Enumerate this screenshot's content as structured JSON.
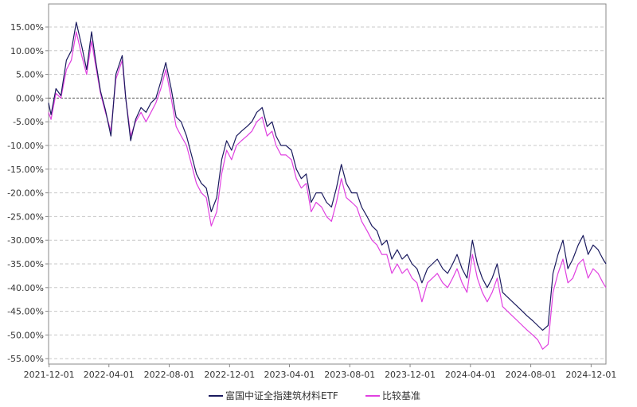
{
  "chart_data": {
    "type": "line",
    "title": "",
    "xlabel": "",
    "ylabel": "",
    "ylim": [
      -0.57,
      0.2
    ],
    "y_ticks": [
      "15.00%",
      "10.00%",
      "5.00%",
      "0.00%",
      "-5.00%",
      "-10.00%",
      "-15.00%",
      "-20.00%",
      "-25.00%",
      "-30.00%",
      "-35.00%",
      "-40.00%",
      "-45.00%",
      "-50.00%",
      "-55.00%"
    ],
    "y_tick_values": [
      0.15,
      0.1,
      0.05,
      0.0,
      -0.05,
      -0.1,
      -0.15,
      -0.2,
      -0.25,
      -0.3,
      -0.35,
      -0.4,
      -0.45,
      -0.5,
      -0.55
    ],
    "x_ticks": [
      "2021-12-01",
      "2022-04-01",
      "2022-08-01",
      "2022-12-01",
      "2023-04-01",
      "2023-08-01",
      "2023-12-01",
      "2024-04-01",
      "2024-08-01",
      "2024-12-01"
    ],
    "x_range": [
      "2021-11-30",
      "2024-12-31"
    ],
    "grid": "horizontal dashed",
    "zero_line": "dashed",
    "legend_position": "bottom",
    "series": [
      {
        "name": "富国中证全指建筑材料ETF",
        "color": "#1a1a5e",
        "dates": [
          "2021-11-30",
          "2021-12-05",
          "2021-12-15",
          "2021-12-25",
          "2022-01-05",
          "2022-01-15",
          "2022-01-25",
          "2022-02-05",
          "2022-02-15",
          "2022-02-25",
          "2022-03-05",
          "2022-03-15",
          "2022-03-25",
          "2022-04-05",
          "2022-04-15",
          "2022-04-28",
          "2022-05-05",
          "2022-05-15",
          "2022-05-25",
          "2022-06-05",
          "2022-06-15",
          "2022-06-25",
          "2022-07-05",
          "2022-07-15",
          "2022-07-25",
          "2022-08-05",
          "2022-08-15",
          "2022-08-25",
          "2022-09-05",
          "2022-09-15",
          "2022-09-25",
          "2022-10-05",
          "2022-10-15",
          "2022-10-25",
          "2022-11-05",
          "2022-11-15",
          "2022-11-25",
          "2022-12-05",
          "2022-12-15",
          "2022-12-25",
          "2023-01-05",
          "2023-01-15",
          "2023-01-25",
          "2023-02-05",
          "2023-02-15",
          "2023-02-25",
          "2023-03-05",
          "2023-03-15",
          "2023-03-25",
          "2023-04-05",
          "2023-04-15",
          "2023-04-25",
          "2023-05-05",
          "2023-05-15",
          "2023-05-25",
          "2023-06-05",
          "2023-06-15",
          "2023-06-25",
          "2023-07-05",
          "2023-07-15",
          "2023-07-25",
          "2023-08-05",
          "2023-08-15",
          "2023-08-25",
          "2023-09-05",
          "2023-09-15",
          "2023-09-25",
          "2023-10-05",
          "2023-10-15",
          "2023-10-25",
          "2023-11-05",
          "2023-11-15",
          "2023-11-25",
          "2023-12-05",
          "2023-12-15",
          "2023-12-25",
          "2024-01-05",
          "2024-01-15",
          "2024-01-25",
          "2024-02-05",
          "2024-02-15",
          "2024-02-25",
          "2024-03-05",
          "2024-03-15",
          "2024-03-25",
          "2024-04-05",
          "2024-04-15",
          "2024-04-25",
          "2024-05-05",
          "2024-05-15",
          "2024-05-25",
          "2024-06-05",
          "2024-06-15",
          "2024-06-25",
          "2024-07-05",
          "2024-07-15",
          "2024-07-25",
          "2024-08-05",
          "2024-08-15",
          "2024-08-25",
          "2024-09-05",
          "2024-09-15",
          "2024-09-25",
          "2024-10-05",
          "2024-10-15",
          "2024-10-25",
          "2024-11-05",
          "2024-11-15",
          "2024-11-25",
          "2024-12-05",
          "2024-12-15",
          "2024-12-25",
          "2024-12-31"
        ],
        "values": [
          -0.01,
          -0.035,
          0.02,
          0.005,
          0.08,
          0.1,
          0.16,
          0.11,
          0.06,
          0.14,
          0.08,
          0.015,
          -0.025,
          -0.08,
          0.05,
          0.09,
          0.0,
          -0.09,
          -0.045,
          -0.02,
          -0.03,
          -0.01,
          0.0,
          0.035,
          0.075,
          0.02,
          -0.04,
          -0.05,
          -0.08,
          -0.12,
          -0.16,
          -0.18,
          -0.19,
          -0.24,
          -0.21,
          -0.13,
          -0.09,
          -0.11,
          -0.08,
          -0.07,
          -0.06,
          -0.05,
          -0.03,
          -0.02,
          -0.06,
          -0.05,
          -0.08,
          -0.1,
          -0.1,
          -0.11,
          -0.15,
          -0.17,
          -0.16,
          -0.22,
          -0.2,
          -0.2,
          -0.22,
          -0.23,
          -0.19,
          -0.14,
          -0.18,
          -0.2,
          -0.2,
          -0.23,
          -0.25,
          -0.27,
          -0.28,
          -0.31,
          -0.3,
          -0.34,
          -0.32,
          -0.34,
          -0.33,
          -0.35,
          -0.36,
          -0.39,
          -0.36,
          -0.35,
          -0.34,
          -0.36,
          -0.37,
          -0.35,
          -0.33,
          -0.36,
          -0.38,
          -0.3,
          -0.35,
          -0.38,
          -0.4,
          -0.38,
          -0.35,
          -0.41,
          -0.42,
          -0.43,
          -0.44,
          -0.45,
          -0.46,
          -0.47,
          -0.48,
          -0.49,
          -0.48,
          -0.37,
          -0.33,
          -0.3,
          -0.36,
          -0.34,
          -0.31,
          -0.29,
          -0.33,
          -0.31,
          -0.32,
          -0.34,
          -0.35
        ]
      },
      {
        "name": "比较基准",
        "color": "#e040e0",
        "dates": [
          "2021-11-30",
          "2021-12-05",
          "2021-12-15",
          "2021-12-25",
          "2022-01-05",
          "2022-01-15",
          "2022-01-25",
          "2022-02-05",
          "2022-02-15",
          "2022-02-25",
          "2022-03-05",
          "2022-03-15",
          "2022-03-25",
          "2022-04-05",
          "2022-04-15",
          "2022-04-28",
          "2022-05-05",
          "2022-05-15",
          "2022-05-25",
          "2022-06-05",
          "2022-06-15",
          "2022-06-25",
          "2022-07-05",
          "2022-07-15",
          "2022-07-25",
          "2022-08-05",
          "2022-08-15",
          "2022-08-25",
          "2022-09-05",
          "2022-09-15",
          "2022-09-25",
          "2022-10-05",
          "2022-10-15",
          "2022-10-25",
          "2022-11-05",
          "2022-11-15",
          "2022-11-25",
          "2022-12-05",
          "2022-12-15",
          "2022-12-25",
          "2023-01-05",
          "2023-01-15",
          "2023-01-25",
          "2023-02-05",
          "2023-02-15",
          "2023-02-25",
          "2023-03-05",
          "2023-03-15",
          "2023-03-25",
          "2023-04-05",
          "2023-04-15",
          "2023-04-25",
          "2023-05-05",
          "2023-05-15",
          "2023-05-25",
          "2023-06-05",
          "2023-06-15",
          "2023-06-25",
          "2023-07-05",
          "2023-07-15",
          "2023-07-25",
          "2023-08-05",
          "2023-08-15",
          "2023-08-25",
          "2023-09-05",
          "2023-09-15",
          "2023-09-25",
          "2023-10-05",
          "2023-10-15",
          "2023-10-25",
          "2023-11-05",
          "2023-11-15",
          "2023-11-25",
          "2023-12-05",
          "2023-12-15",
          "2023-12-25",
          "2024-01-05",
          "2024-01-15",
          "2024-01-25",
          "2024-02-05",
          "2024-02-15",
          "2024-02-25",
          "2024-03-05",
          "2024-03-15",
          "2024-03-25",
          "2024-04-05",
          "2024-04-15",
          "2024-04-25",
          "2024-05-05",
          "2024-05-15",
          "2024-05-25",
          "2024-06-05",
          "2024-06-15",
          "2024-06-25",
          "2024-07-05",
          "2024-07-15",
          "2024-07-25",
          "2024-08-05",
          "2024-08-15",
          "2024-08-25",
          "2024-09-05",
          "2024-09-15",
          "2024-09-25",
          "2024-10-05",
          "2024-10-15",
          "2024-10-25",
          "2024-11-05",
          "2024-11-15",
          "2024-11-25",
          "2024-12-05",
          "2024-12-15",
          "2024-12-25",
          "2024-12-31"
        ],
        "values": [
          -0.03,
          -0.045,
          0.01,
          0.0,
          0.06,
          0.08,
          0.14,
          0.09,
          0.05,
          0.12,
          0.07,
          0.01,
          -0.03,
          -0.07,
          0.04,
          0.08,
          0.0,
          -0.08,
          -0.05,
          -0.03,
          -0.05,
          -0.03,
          -0.01,
          0.02,
          0.06,
          0.0,
          -0.06,
          -0.08,
          -0.1,
          -0.14,
          -0.18,
          -0.2,
          -0.21,
          -0.27,
          -0.24,
          -0.16,
          -0.11,
          -0.13,
          -0.1,
          -0.09,
          -0.08,
          -0.07,
          -0.05,
          -0.04,
          -0.08,
          -0.07,
          -0.1,
          -0.12,
          -0.12,
          -0.13,
          -0.17,
          -0.19,
          -0.18,
          -0.24,
          -0.22,
          -0.23,
          -0.25,
          -0.26,
          -0.22,
          -0.17,
          -0.21,
          -0.22,
          -0.23,
          -0.26,
          -0.28,
          -0.3,
          -0.31,
          -0.33,
          -0.33,
          -0.37,
          -0.35,
          -0.37,
          -0.36,
          -0.38,
          -0.39,
          -0.43,
          -0.39,
          -0.38,
          -0.37,
          -0.39,
          -0.4,
          -0.38,
          -0.36,
          -0.39,
          -0.41,
          -0.33,
          -0.38,
          -0.41,
          -0.43,
          -0.41,
          -0.38,
          -0.44,
          -0.45,
          -0.46,
          -0.47,
          -0.48,
          -0.49,
          -0.5,
          -0.51,
          -0.53,
          -0.52,
          -0.41,
          -0.37,
          -0.34,
          -0.39,
          -0.38,
          -0.35,
          -0.34,
          -0.38,
          -0.36,
          -0.37,
          -0.39,
          -0.4
        ]
      }
    ]
  }
}
